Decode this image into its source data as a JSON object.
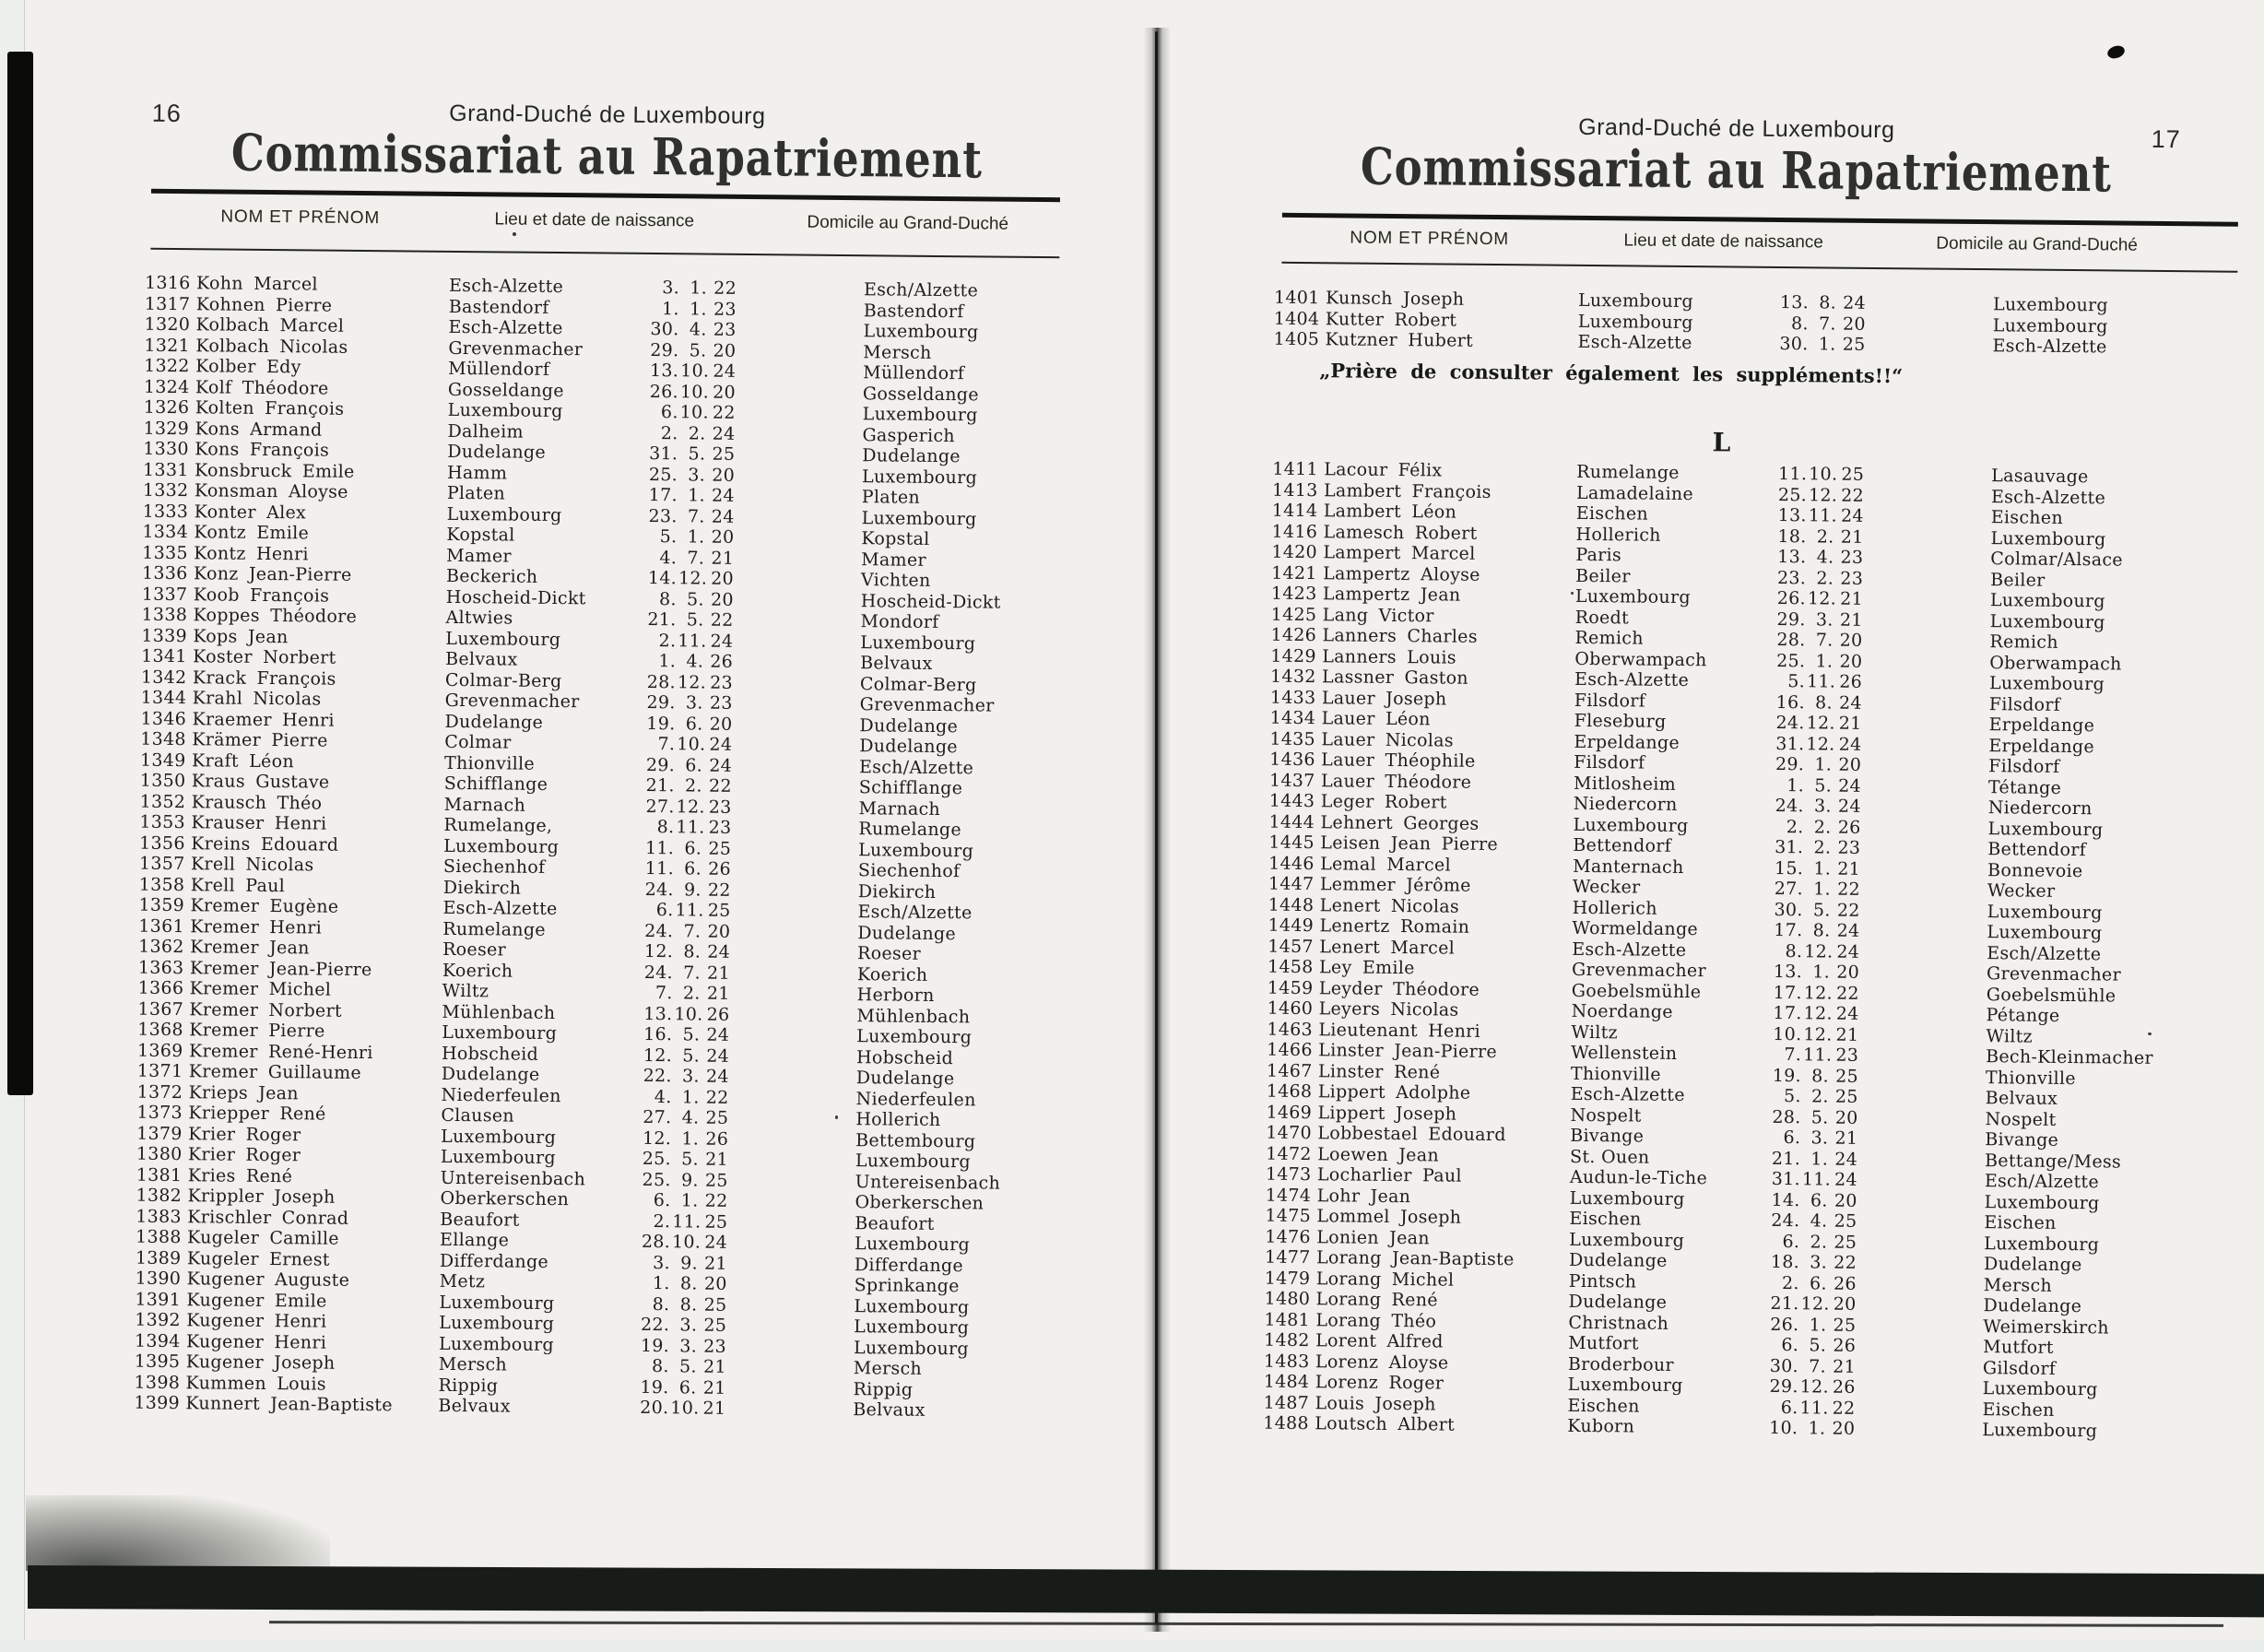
{
  "pages": [
    {
      "page_number": "16",
      "header_small": "Grand-Duché de Luxembourg",
      "title": "Commissariat au Rapatriement",
      "columns": {
        "name": "NOM ET PRÉNOM",
        "birth": "Lieu et date de naissance",
        "domicile": "Domicile au Grand-Duché"
      },
      "rows": [
        [
          "1316",
          "Kohn Marcel",
          "Esch-Alzette",
          "3.",
          "1.",
          "22",
          "Esch/Alzette"
        ],
        [
          "1317",
          "Kohnen Pierre",
          "Bastendorf",
          "1.",
          "1.",
          "23",
          "Bastendorf"
        ],
        [
          "1320",
          "Kolbach Marcel",
          "Esch-Alzette",
          "30.",
          "4.",
          "23",
          "Luxembourg"
        ],
        [
          "1321",
          "Kolbach Nicolas",
          "Grevenmacher",
          "29.",
          "5.",
          "20",
          "Mersch"
        ],
        [
          "1322",
          "Kolber Edy",
          "Müllendorf",
          "13.",
          "10.",
          "24",
          "Müllendorf"
        ],
        [
          "1324",
          "Kolf Théodore",
          "Gosseldange",
          "26.",
          "10.",
          "20",
          "Gosseldange"
        ],
        [
          "1326",
          "Kolten François",
          "Luxembourg",
          "6.",
          "10.",
          "22",
          "Luxembourg"
        ],
        [
          "1329",
          "Kons Armand",
          "Dalheim",
          "2.",
          "2.",
          "24",
          "Gasperich"
        ],
        [
          "1330",
          "Kons François",
          "Dudelange",
          "31.",
          "5.",
          "25",
          "Dudelange"
        ],
        [
          "1331",
          "Konsbruck Emile",
          "Hamm",
          "25.",
          "3.",
          "20",
          "Luxembourg"
        ],
        [
          "1332",
          "Konsman Aloyse",
          "Platen",
          "17.",
          "1.",
          "24",
          "Platen"
        ],
        [
          "1333",
          "Konter Alex",
          "Luxembourg",
          "23.",
          "7.",
          "24",
          "Luxembourg"
        ],
        [
          "1334",
          "Kontz Emile",
          "Kopstal",
          "5.",
          "1.",
          "20",
          "Kopstal"
        ],
        [
          "1335",
          "Kontz Henri",
          "Mamer",
          "4.",
          "7.",
          "21",
          "Mamer"
        ],
        [
          "1336",
          "Konz Jean-Pierre",
          "Beckerich",
          "14.",
          "12.",
          "20",
          "Vichten"
        ],
        [
          "1337",
          "Koob François",
          "Hoscheid-Dickt",
          "8.",
          "5.",
          "20",
          "Hoscheid-Dickt"
        ],
        [
          "1338",
          "Koppes Théodore",
          "Altwies",
          "21.",
          "5.",
          "22",
          "Mondorf"
        ],
        [
          "1339",
          "Kops Jean",
          "Luxembourg",
          "2.",
          "11.",
          "24",
          "Luxembourg"
        ],
        [
          "1341",
          "Koster Norbert",
          "Belvaux",
          "1.",
          "4.",
          "26",
          "Belvaux"
        ],
        [
          "1342",
          "Krack François",
          "Colmar-Berg",
          "28.",
          "12.",
          "23",
          "Colmar-Berg"
        ],
        [
          "1344",
          "Krahl Nicolas",
          "Grevenmacher",
          "29.",
          "3.",
          "23",
          "Grevenmacher"
        ],
        [
          "1346",
          "Kraemer Henri",
          "Dudelange",
          "19.",
          "6.",
          "20",
          "Dudelange"
        ],
        [
          "1348",
          "Krämer Pierre",
          "Colmar",
          "7.",
          "10.",
          "24",
          "Dudelange"
        ],
        [
          "1349",
          "Kraft Léon",
          "Thionville",
          "29.",
          "6.",
          "24",
          "Esch/Alzette"
        ],
        [
          "1350",
          "Kraus Gustave",
          "Schifflange",
          "21.",
          "2.",
          "22",
          "Schifflange"
        ],
        [
          "1352",
          "Krausch Théo",
          "Marnach",
          "27.",
          "12.",
          "23",
          "Marnach"
        ],
        [
          "1353",
          "Krauser Henri",
          "Rumelange,",
          "8.",
          "11.",
          "23",
          "Rumelange"
        ],
        [
          "1356",
          "Kreins Edouard",
          "Luxembourg",
          "11.",
          "6.",
          "25",
          "Luxembourg"
        ],
        [
          "1357",
          "Krell Nicolas",
          "Siechenhof",
          "11.",
          "6.",
          "26",
          "Siechenhof"
        ],
        [
          "1358",
          "Krell Paul",
          "Diekirch",
          "24.",
          "9.",
          "22",
          "Diekirch"
        ],
        [
          "1359",
          "Kremer Eugène",
          "Esch-Alzette",
          "6.",
          "11.",
          "25",
          "Esch/Alzette"
        ],
        [
          "1361",
          "Kremer Henri",
          "Rumelange",
          "24.",
          "7.",
          "20",
          "Dudelange"
        ],
        [
          "1362",
          "Kremer Jean",
          "Roeser",
          "12.",
          "8.",
          "24",
          "Roeser"
        ],
        [
          "1363",
          "Kremer Jean-Pierre",
          "Koerich",
          "24.",
          "7.",
          "21",
          "Koerich"
        ],
        [
          "1366",
          "Kremer Michel",
          "Wiltz",
          "7.",
          "2.",
          "21",
          "Herborn"
        ],
        [
          "1367",
          "Kremer Norbert",
          "Mühlenbach",
          "13.",
          "10.",
          "26",
          "Mühlenbach"
        ],
        [
          "1368",
          "Kremer Pierre",
          "Luxembourg",
          "16.",
          "5.",
          "24",
          "Luxembourg"
        ],
        [
          "1369",
          "Kremer René-Henri",
          "Hobscheid",
          "12.",
          "5.",
          "24",
          "Hobscheid"
        ],
        [
          "1371",
          "Kremer Guillaume",
          "Dudelange",
          "22.",
          "3.",
          "24",
          "Dudelange"
        ],
        [
          "1372",
          "Krieps Jean",
          "Niederfeulen",
          "4.",
          "1.",
          "22",
          "Niederfeulen"
        ],
        [
          "1373",
          "Kriepper René",
          "Clausen",
          "27.",
          "4.",
          "25",
          "Hollerich"
        ],
        [
          "1379",
          "Krier Roger",
          "Luxembourg",
          "12.",
          "1.",
          "26",
          "Bettembourg"
        ],
        [
          "1380",
          "Krier Roger",
          "Luxembourg",
          "25.",
          "5.",
          "21",
          "Luxembourg"
        ],
        [
          "1381",
          "Kries René",
          "Untereisenbach",
          "25.",
          "9.",
          "25",
          "Untereisenbach"
        ],
        [
          "1382",
          "Krippler Joseph",
          "Oberkerschen",
          "6.",
          "1.",
          "22",
          "Oberkerschen"
        ],
        [
          "1383",
          "Krischler Conrad",
          "Beaufort",
          "2.",
          "11.",
          "25",
          "Beaufort"
        ],
        [
          "1388",
          "Kugeler Camille",
          "Ellange",
          "28.",
          "10.",
          "24",
          "Luxembourg"
        ],
        [
          "1389",
          "Kugeler Ernest",
          "Differdange",
          "3.",
          "9.",
          "21",
          "Differdange"
        ],
        [
          "1390",
          "Kugener Auguste",
          "Metz",
          "1.",
          "8.",
          "20",
          "Sprinkange"
        ],
        [
          "1391",
          "Kugener Emile",
          "Luxembourg",
          "8.",
          "8.",
          "25",
          "Luxembourg"
        ],
        [
          "1392",
          "Kugener Henri",
          "Luxembourg",
          "22.",
          "3.",
          "25",
          "Luxembourg"
        ],
        [
          "1394",
          "Kugener Henri",
          "Luxembourg",
          "19.",
          "3.",
          "23",
          "Luxembourg"
        ],
        [
          "1395",
          "Kugener Joseph",
          "Mersch",
          "8.",
          "5.",
          "21",
          "Mersch"
        ],
        [
          "1398",
          "Kummen Louis",
          "Rippig",
          "19.",
          "6.",
          "21",
          "Rippig"
        ],
        [
          "1399",
          "Kunnert Jean-Baptiste",
          "Belvaux",
          "20.",
          "10.",
          "21",
          "Belvaux"
        ]
      ]
    },
    {
      "page_number": "17",
      "header_small": "Grand-Duché de Luxembourg",
      "title": "Commissariat au Rapatriement",
      "columns": {
        "name": "NOM ET PRÉNOM",
        "birth": "Lieu et date de naissance",
        "domicile": "Domicile au Grand-Duché"
      },
      "rows_top": [
        [
          "1401",
          "Kunsch Joseph",
          "Luxembourg",
          "13.",
          "8.",
          "24",
          "Luxembourg"
        ],
        [
          "1404",
          "Kutter Robert",
          "Luxembourg",
          "8.",
          "7.",
          "20",
          "Luxembourg"
        ],
        [
          "1405",
          "Kutzner Hubert",
          "Esch-Alzette",
          "30.",
          "1.",
          "25",
          "Esch-Alzette"
        ]
      ],
      "notice": "„Prière de consulter également les suppléments!!“",
      "section_letter": "L",
      "rows": [
        [
          "1411",
          "Lacour Félix",
          "Rumelange",
          "11.",
          "10.",
          "25",
          "Lasauvage"
        ],
        [
          "1413",
          "Lambert François",
          "Lamadelaine",
          "25.",
          "12.",
          "22",
          "Esch-Alzette"
        ],
        [
          "1414",
          "Lambert Léon",
          "Eischen",
          "13.",
          "11.",
          "24",
          "Eischen"
        ],
        [
          "1416",
          "Lamesch Robert",
          "Hollerich",
          "18.",
          "2.",
          "21",
          "Luxembourg"
        ],
        [
          "1420",
          "Lampert Marcel",
          "Paris",
          "13.",
          "4.",
          "23",
          "Colmar/Alsace"
        ],
        [
          "1421",
          "Lampertz Aloyse",
          "Beiler",
          "23.",
          "2.",
          "23",
          "Beiler"
        ],
        [
          "1423",
          "Lampertz Jean",
          "Luxembourg",
          "26.",
          "12.",
          "21",
          "Luxembourg"
        ],
        [
          "1425",
          "Lang Victor",
          "Roedt",
          "29.",
          "3.",
          "21",
          "Luxembourg"
        ],
        [
          "1426",
          "Lanners Charles",
          "Remich",
          "28.",
          "7.",
          "20",
          "Remich"
        ],
        [
          "1429",
          "Lanners Louis",
          "Oberwampach",
          "25.",
          "1.",
          "20",
          "Oberwampach"
        ],
        [
          "1432",
          "Lassner Gaston",
          "Esch-Alzette",
          "5.",
          "11.",
          "26",
          "Luxembourg"
        ],
        [
          "1433",
          "Lauer Joseph",
          "Filsdorf",
          "16.",
          "8.",
          "24",
          "Filsdorf"
        ],
        [
          "1434",
          "Lauer Léon",
          "Fleseburg",
          "24.",
          "12.",
          "21",
          "Erpeldange"
        ],
        [
          "1435",
          "Lauer Nicolas",
          "Erpeldange",
          "31.",
          "12.",
          "24",
          "Erpeldange"
        ],
        [
          "1436",
          "Lauer Théophile",
          "Filsdorf",
          "29.",
          "1.",
          "20",
          "Filsdorf"
        ],
        [
          "1437",
          "Lauer Théodore",
          "Mitlosheim",
          "1.",
          "5.",
          "24",
          "Tétange"
        ],
        [
          "1443",
          "Leger Robert",
          "Niedercorn",
          "24.",
          "3.",
          "24",
          "Niedercorn"
        ],
        [
          "1444",
          "Lehnert Georges",
          "Luxembourg",
          "2.",
          "2.",
          "26",
          "Luxembourg"
        ],
        [
          "1445",
          "Leisen Jean Pierre",
          "Bettendorf",
          "31.",
          "2.",
          "23",
          "Bettendorf"
        ],
        [
          "1446",
          "Lemal Marcel",
          "Manternach",
          "15.",
          "1.",
          "21",
          "Bonnevoie"
        ],
        [
          "1447",
          "Lemmer Jérôme",
          "Wecker",
          "27.",
          "1.",
          "22",
          "Wecker"
        ],
        [
          "1448",
          "Lenert Nicolas",
          "Hollerich",
          "30.",
          "5.",
          "22",
          "Luxembourg"
        ],
        [
          "1449",
          "Lenertz Romain",
          "Wormeldange",
          "17.",
          "8.",
          "24",
          "Luxembourg"
        ],
        [
          "1457",
          "Lenert Marcel",
          "Esch-Alzette",
          "8.",
          "12.",
          "24",
          "Esch/Alzette"
        ],
        [
          "1458",
          "Ley Emile",
          "Grevenmacher",
          "13.",
          "1.",
          "20",
          "Grevenmacher"
        ],
        [
          "1459",
          "Leyder Théodore",
          "Goebelsmühle",
          "17.",
          "12.",
          "22",
          "Goebelsmühle"
        ],
        [
          "1460",
          "Leyers Nicolas",
          "Noerdange",
          "17.",
          "12.",
          "24",
          "Pétange"
        ],
        [
          "1463",
          "Lieutenant Henri",
          "Wiltz",
          "10.",
          "12.",
          "21",
          "Wiltz"
        ],
        [
          "1466",
          "Linster Jean-Pierre",
          "Wellenstein",
          "7.",
          "11.",
          "23",
          "Bech-Kleinmacher"
        ],
        [
          "1467",
          "Linster René",
          "Thionville",
          "19.",
          "8.",
          "25",
          "Thionville"
        ],
        [
          "1468",
          "Lippert Adolphe",
          "Esch-Alzette",
          "5.",
          "2.",
          "25",
          "Belvaux"
        ],
        [
          "1469",
          "Lippert Joseph",
          "Nospelt",
          "28.",
          "5.",
          "20",
          "Nospelt"
        ],
        [
          "1470",
          "Lobbestael Edouard",
          "Bivange",
          "6.",
          "3.",
          "21",
          "Bivange"
        ],
        [
          "1472",
          "Loewen Jean",
          "St. Ouen",
          "21.",
          "1.",
          "24",
          "Bettange/Mess"
        ],
        [
          "1473",
          "Locharlier Paul",
          "Audun-le-Tiche",
          "31.",
          "11.",
          "24",
          "Esch/Alzette"
        ],
        [
          "1474",
          "Lohr Jean",
          "Luxembourg",
          "14.",
          "6.",
          "20",
          "Luxembourg"
        ],
        [
          "1475",
          "Lommel Joseph",
          "Eischen",
          "24.",
          "4.",
          "25",
          "Eischen"
        ],
        [
          "1476",
          "Lonien Jean",
          "Luxembourg",
          "6.",
          "2.",
          "25",
          "Luxembourg"
        ],
        [
          "1477",
          "Lorang Jean-Baptiste",
          "Dudelange",
          "18.",
          "3.",
          "22",
          "Dudelange"
        ],
        [
          "1479",
          "Lorang Michel",
          "Pintsch",
          "2.",
          "6.",
          "26",
          "Mersch"
        ],
        [
          "1480",
          "Lorang René",
          "Dudelange",
          "21.",
          "12.",
          "20",
          "Dudelange"
        ],
        [
          "1481",
          "Lorang Théo",
          "Christnach",
          "26.",
          "1.",
          "25",
          "Weimerskirch"
        ],
        [
          "1482",
          "Lorent Alfred",
          "Mutfort",
          "6.",
          "5.",
          "26",
          "Mutfort"
        ],
        [
          "1483",
          "Lorenz Aloyse",
          "Broderbour",
          "30.",
          "7.",
          "21",
          "Gilsdorf"
        ],
        [
          "1484",
          "Lorenz Roger",
          "Luxembourg",
          "29.",
          "12.",
          "26",
          "Luxembourg"
        ],
        [
          "1487",
          "Louis Joseph",
          "Eischen",
          "6.",
          "11.",
          "22",
          "Eischen"
        ],
        [
          "1488",
          "Loutsch Albert",
          "Kuborn",
          "10.",
          "1.",
          "20",
          "Luxembourg"
        ]
      ]
    }
  ]
}
